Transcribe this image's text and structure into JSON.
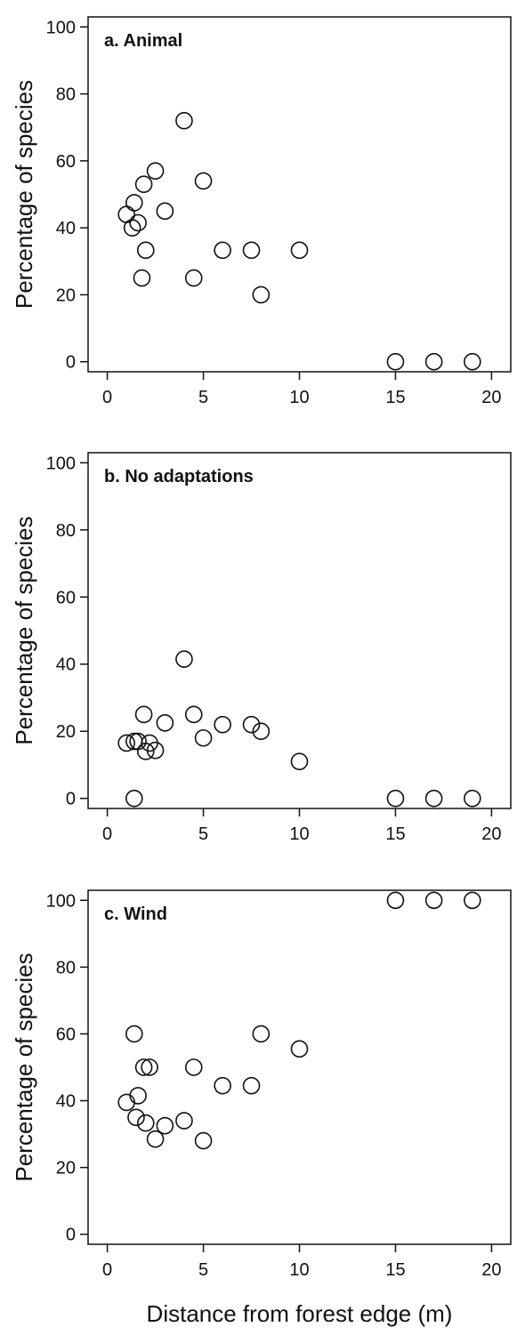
{
  "chart_data": [
    {
      "type": "scatter",
      "title": "a. Animal",
      "xlabel": "",
      "ylabel": "Percentage of species",
      "xlim": [
        -1,
        21
      ],
      "ylim": [
        -3,
        103
      ],
      "xticks": [
        "0",
        "5",
        "10",
        "15",
        "20"
      ],
      "yticks": [
        "0",
        "20",
        "40",
        "60",
        "80",
        "100"
      ],
      "x": [
        1.0,
        1.3,
        1.4,
        1.6,
        1.8,
        1.9,
        2.0,
        2.5,
        3.0,
        4.0,
        4.5,
        5.0,
        6.0,
        7.5,
        8.0,
        10.0,
        15.0,
        17.0,
        19.0
      ],
      "y": [
        44.0,
        40.0,
        47.5,
        41.5,
        25.0,
        53.0,
        33.3,
        57.0,
        45.0,
        72.0,
        25.0,
        54.0,
        33.3,
        33.3,
        20.0,
        33.3,
        0.0,
        0.0,
        0.0
      ]
    },
    {
      "type": "scatter",
      "title": "b. No adaptations",
      "xlabel": "",
      "ylabel": "Percentage of species",
      "xlim": [
        -1,
        21
      ],
      "ylim": [
        -3,
        103
      ],
      "xticks": [
        "0",
        "5",
        "10",
        "15",
        "20"
      ],
      "yticks": [
        "0",
        "20",
        "40",
        "60",
        "80",
        "100"
      ],
      "x": [
        1.0,
        1.4,
        1.4,
        1.6,
        1.9,
        2.0,
        2.2,
        2.5,
        3.0,
        4.0,
        4.5,
        5.0,
        6.0,
        7.5,
        8.0,
        10.0,
        15.0,
        17.0,
        19.0
      ],
      "y": [
        16.5,
        17.0,
        0.0,
        17.0,
        25.0,
        14.0,
        16.5,
        14.3,
        22.5,
        41.5,
        25.0,
        18.0,
        22.0,
        22.0,
        20.0,
        11.0,
        0.0,
        0.0,
        0.0
      ],
      "note": ""
    },
    {
      "type": "scatter",
      "title": "c. Wind",
      "xlabel": "Distance from forest edge (m)",
      "ylabel": "Percentage of species",
      "xlim": [
        -1,
        21
      ],
      "ylim": [
        -3,
        103
      ],
      "xticks": [
        "0",
        "5",
        "10",
        "15",
        "20"
      ],
      "yticks": [
        "0",
        "20",
        "40",
        "60",
        "80",
        "100"
      ],
      "x": [
        1.0,
        1.4,
        1.5,
        1.6,
        1.9,
        2.0,
        2.2,
        2.5,
        3.0,
        4.0,
        4.5,
        5.0,
        6.0,
        7.5,
        8.0,
        10.0,
        15.0,
        17.0,
        19.0
      ],
      "y": [
        39.5,
        60.0,
        35.0,
        41.5,
        50.0,
        33.3,
        50.0,
        28.5,
        32.5,
        34.0,
        50.0,
        28.0,
        44.5,
        44.5,
        60.0,
        55.5,
        100.0,
        100.0,
        100.0
      ]
    }
  ]
}
